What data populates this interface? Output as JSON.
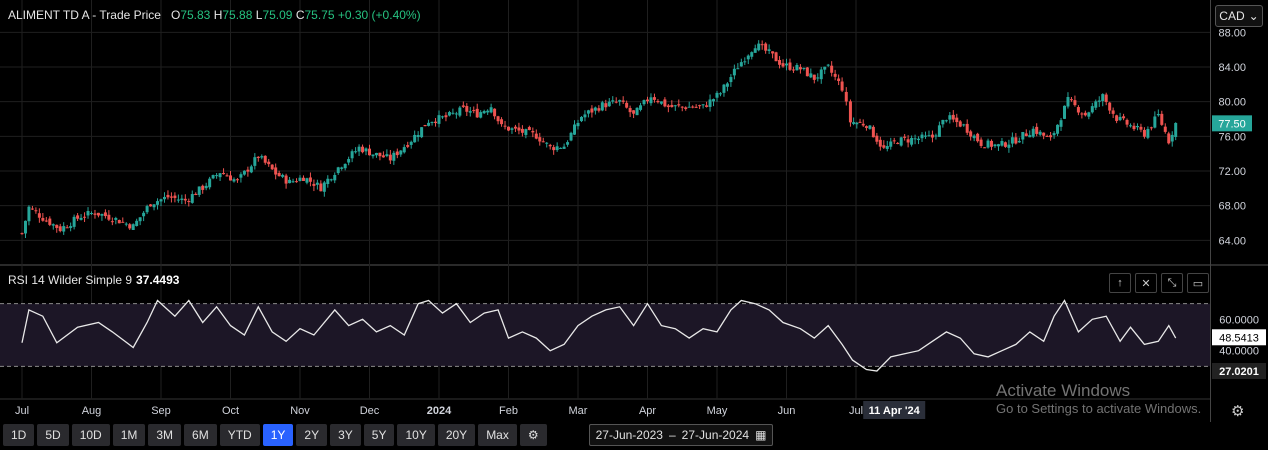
{
  "header": {
    "symbol": "ALIMENT TD A",
    "price_type": "Trade Price",
    "open_label": "O",
    "open": "75.83",
    "high_label": "H",
    "high": "75.88",
    "low_label": "L",
    "low": "75.09",
    "close_label": "C",
    "close": "75.75",
    "change": "+0.30 (+0.40%)"
  },
  "currency": {
    "label": "CAD"
  },
  "rsi": {
    "label": "RSI 14 Wilder Simple 9",
    "current": "37.4493",
    "pane_buttons": [
      "arrow-up-icon",
      "close-icon",
      "collapse-icon",
      "restore-icon"
    ]
  },
  "chart_data": [
    {
      "type": "candlestick",
      "y_ticks": [
        "88.00",
        "84.00",
        "80.00",
        "76.00",
        "72.00",
        "68.00",
        "64.00"
      ],
      "ylim": [
        61.5,
        88.5
      ],
      "last_price_label": "77.50",
      "x_tick_labels": [
        "Jul",
        "Aug",
        "Sep",
        "Oct",
        "Nov",
        "Dec",
        "2024",
        "Feb",
        "Mar",
        "Apr",
        "May",
        "Jun",
        "Jul"
      ],
      "crosshair_date": "11 Apr '24",
      "up_color": "#26a69a",
      "down_color": "#ef5350",
      "close_series": [
        {
          "month": 0,
          "close": 64.8
        },
        {
          "month": 0.1,
          "close": 67.8
        },
        {
          "month": 0.3,
          "close": 66.6
        },
        {
          "month": 0.55,
          "close": 65.3
        },
        {
          "month": 0.85,
          "close": 66.8
        },
        {
          "month": 1.05,
          "close": 67.2
        },
        {
          "month": 1.3,
          "close": 66.6
        },
        {
          "month": 1.6,
          "close": 65.6
        },
        {
          "month": 1.85,
          "close": 68.3
        },
        {
          "month": 2.1,
          "close": 69.0
        },
        {
          "month": 2.35,
          "close": 68.6
        },
        {
          "month": 2.6,
          "close": 70.1
        },
        {
          "month": 2.85,
          "close": 71.9
        },
        {
          "month": 3.1,
          "close": 70.8
        },
        {
          "month": 3.4,
          "close": 73.7
        },
        {
          "month": 3.65,
          "close": 71.7
        },
        {
          "month": 3.85,
          "close": 70.7
        },
        {
          "month": 4.05,
          "close": 71.3
        },
        {
          "month": 4.3,
          "close": 70.1
        },
        {
          "month": 4.55,
          "close": 72.4
        },
        {
          "month": 4.85,
          "close": 74.7
        },
        {
          "month": 5.05,
          "close": 74.0
        },
        {
          "month": 5.3,
          "close": 73.4
        },
        {
          "month": 5.6,
          "close": 75.6
        },
        {
          "month": 5.85,
          "close": 77.8
        },
        {
          "month": 6.1,
          "close": 78.2
        },
        {
          "month": 6.35,
          "close": 79.1
        },
        {
          "month": 6.55,
          "close": 78.6
        },
        {
          "month": 6.75,
          "close": 79.5
        },
        {
          "month": 6.9,
          "close": 77.1
        },
        {
          "month": 7.1,
          "close": 76.7
        },
        {
          "month": 7.4,
          "close": 76.1
        },
        {
          "month": 7.6,
          "close": 74.7
        },
        {
          "month": 7.8,
          "close": 74.9
        },
        {
          "month": 8.05,
          "close": 78.3
        },
        {
          "month": 8.35,
          "close": 79.6
        },
        {
          "month": 8.6,
          "close": 80.0
        },
        {
          "month": 8.8,
          "close": 78.4
        },
        {
          "month": 9.05,
          "close": 80.7
        },
        {
          "month": 9.3,
          "close": 79.4
        },
        {
          "month": 9.55,
          "close": 79.4
        },
        {
          "month": 9.8,
          "close": 79.4
        },
        {
          "month": 10.05,
          "close": 81.0
        },
        {
          "month": 10.3,
          "close": 84.1
        },
        {
          "month": 10.55,
          "close": 86.6
        },
        {
          "month": 10.75,
          "close": 85.6
        },
        {
          "month": 10.95,
          "close": 84.2
        },
        {
          "month": 11.2,
          "close": 83.8
        },
        {
          "month": 11.4,
          "close": 82.7
        },
        {
          "month": 11.6,
          "close": 83.9
        },
        {
          "month": 11.8,
          "close": 81.6
        },
        {
          "month": 11.92,
          "close": 77.7
        },
        {
          "month": 12.15,
          "close": 77.4
        },
        {
          "month": 12.4,
          "close": 74.5
        },
        {
          "month": 12.6,
          "close": 75.5
        },
        {
          "month": 12.85,
          "close": 75.7
        },
        {
          "month": 13.1,
          "close": 75.9
        },
        {
          "month": 13.3,
          "close": 78.2
        },
        {
          "month": 13.55,
          "close": 77.2
        },
        {
          "month": 13.8,
          "close": 75.2
        },
        {
          "month": 14.05,
          "close": 74.9
        },
        {
          "month": 14.3,
          "close": 75.6
        },
        {
          "month": 14.55,
          "close": 76.8
        },
        {
          "month": 14.8,
          "close": 75.6
        },
        {
          "month": 15.05,
          "close": 80.1
        },
        {
          "month": 15.3,
          "close": 78.5
        },
        {
          "month": 15.55,
          "close": 80.6
        },
        {
          "month": 15.75,
          "close": 78.1
        },
        {
          "month": 15.95,
          "close": 77.2
        },
        {
          "month": 16.15,
          "close": 76.3
        },
        {
          "month": 16.35,
          "close": 78.4
        },
        {
          "month": 16.5,
          "close": 75.5
        },
        {
          "month": 16.6,
          "close": 77.5
        }
      ]
    },
    {
      "type": "line",
      "name": "RSI 14 Wilder Simple 9",
      "y_ticks": [
        "60.0000",
        "40.0000"
      ],
      "reference_lines": [
        70,
        30
      ],
      "ylim": [
        20,
        80
      ],
      "current_label": "48.5413",
      "lower_label": "27.0201",
      "series_color": "#e8e8e8",
      "points": [
        {
          "month": 0,
          "rsi": 45
        },
        {
          "month": 0.1,
          "rsi": 66
        },
        {
          "month": 0.3,
          "rsi": 62
        },
        {
          "month": 0.5,
          "rsi": 45
        },
        {
          "month": 0.8,
          "rsi": 55
        },
        {
          "month": 1.1,
          "rsi": 58
        },
        {
          "month": 1.3,
          "rsi": 52
        },
        {
          "month": 1.6,
          "rsi": 42
        },
        {
          "month": 1.8,
          "rsi": 58
        },
        {
          "month": 1.95,
          "rsi": 72
        },
        {
          "month": 2.2,
          "rsi": 62
        },
        {
          "month": 2.4,
          "rsi": 72
        },
        {
          "month": 2.6,
          "rsi": 58
        },
        {
          "month": 2.8,
          "rsi": 68
        },
        {
          "month": 3.0,
          "rsi": 56
        },
        {
          "month": 3.2,
          "rsi": 50
        },
        {
          "month": 3.4,
          "rsi": 68
        },
        {
          "month": 3.6,
          "rsi": 52
        },
        {
          "month": 3.8,
          "rsi": 46
        },
        {
          "month": 4.0,
          "rsi": 54
        },
        {
          "month": 4.2,
          "rsi": 50
        },
        {
          "month": 4.5,
          "rsi": 66
        },
        {
          "month": 4.7,
          "rsi": 56
        },
        {
          "month": 4.9,
          "rsi": 60
        },
        {
          "month": 5.1,
          "rsi": 52
        },
        {
          "month": 5.3,
          "rsi": 56
        },
        {
          "month": 5.5,
          "rsi": 50
        },
        {
          "month": 5.7,
          "rsi": 70
        },
        {
          "month": 5.85,
          "rsi": 72
        },
        {
          "month": 6.05,
          "rsi": 64
        },
        {
          "month": 6.25,
          "rsi": 70
        },
        {
          "month": 6.45,
          "rsi": 58
        },
        {
          "month": 6.65,
          "rsi": 64
        },
        {
          "month": 6.85,
          "rsi": 66
        },
        {
          "month": 7.0,
          "rsi": 48
        },
        {
          "month": 7.2,
          "rsi": 52
        },
        {
          "month": 7.4,
          "rsi": 48
        },
        {
          "month": 7.6,
          "rsi": 40
        },
        {
          "month": 7.8,
          "rsi": 44
        },
        {
          "month": 8.0,
          "rsi": 56
        },
        {
          "month": 8.2,
          "rsi": 62
        },
        {
          "month": 8.4,
          "rsi": 66
        },
        {
          "month": 8.6,
          "rsi": 68
        },
        {
          "month": 8.8,
          "rsi": 56
        },
        {
          "month": 9.0,
          "rsi": 70
        },
        {
          "month": 9.2,
          "rsi": 56
        },
        {
          "month": 9.4,
          "rsi": 54
        },
        {
          "month": 9.6,
          "rsi": 48
        },
        {
          "month": 9.8,
          "rsi": 54
        },
        {
          "month": 10.0,
          "rsi": 52
        },
        {
          "month": 10.2,
          "rsi": 66
        },
        {
          "month": 10.35,
          "rsi": 72
        },
        {
          "month": 10.55,
          "rsi": 70
        },
        {
          "month": 10.75,
          "rsi": 66
        },
        {
          "month": 10.95,
          "rsi": 58
        },
        {
          "month": 11.2,
          "rsi": 54
        },
        {
          "month": 11.4,
          "rsi": 48
        },
        {
          "month": 11.6,
          "rsi": 56
        },
        {
          "month": 11.8,
          "rsi": 44
        },
        {
          "month": 11.95,
          "rsi": 34
        },
        {
          "month": 12.15,
          "rsi": 28
        },
        {
          "month": 12.3,
          "rsi": 27
        },
        {
          "month": 12.5,
          "rsi": 36
        },
        {
          "month": 12.7,
          "rsi": 38
        },
        {
          "month": 12.9,
          "rsi": 40
        },
        {
          "month": 13.1,
          "rsi": 46
        },
        {
          "month": 13.3,
          "rsi": 52
        },
        {
          "month": 13.5,
          "rsi": 48
        },
        {
          "month": 13.7,
          "rsi": 38
        },
        {
          "month": 13.9,
          "rsi": 36
        },
        {
          "month": 14.1,
          "rsi": 40
        },
        {
          "month": 14.3,
          "rsi": 44
        },
        {
          "month": 14.5,
          "rsi": 52
        },
        {
          "month": 14.7,
          "rsi": 46
        },
        {
          "month": 14.85,
          "rsi": 62
        },
        {
          "month": 15.0,
          "rsi": 72
        },
        {
          "month": 15.2,
          "rsi": 52
        },
        {
          "month": 15.4,
          "rsi": 60
        },
        {
          "month": 15.6,
          "rsi": 62
        },
        {
          "month": 15.8,
          "rsi": 46
        },
        {
          "month": 15.95,
          "rsi": 55
        },
        {
          "month": 16.15,
          "rsi": 44
        },
        {
          "month": 16.35,
          "rsi": 46
        },
        {
          "month": 16.5,
          "rsi": 56
        },
        {
          "month": 16.6,
          "rsi": 48
        }
      ]
    }
  ],
  "timeframes": [
    "1D",
    "5D",
    "10D",
    "1M",
    "3M",
    "6M",
    "YTD",
    "1Y",
    "2Y",
    "3Y",
    "5Y",
    "10Y",
    "20Y",
    "Max"
  ],
  "active_timeframe": "1Y",
  "date_range": {
    "from": "27-Jun-2023",
    "separator": "–",
    "to": "27-Jun-2024"
  },
  "watermark": {
    "line1": "Activate Windows",
    "line2": "Go to Settings to activate Windows."
  }
}
